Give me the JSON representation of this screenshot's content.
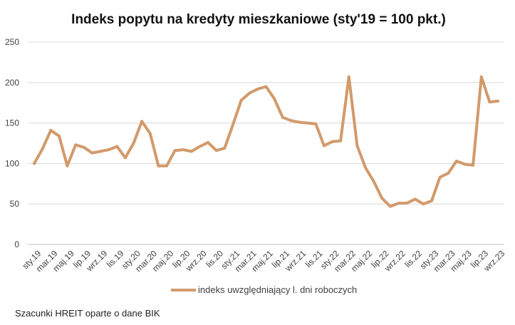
{
  "chart_data": {
    "type": "line",
    "title": "Indeks popytu na kredyty mieszkaniowe (sty'19 = 100 pkt.)",
    "xlabel": "",
    "ylabel": "",
    "ylim": [
      0,
      250
    ],
    "yticks": [
      "0",
      "50",
      "100",
      "150",
      "200",
      "250"
    ],
    "grid": true,
    "legend_position": "bottom",
    "categories": [
      "sty.19",
      "lut.19",
      "mar.19",
      "kwi.19",
      "maj.19",
      "cze.19",
      "lip.19",
      "sie.19",
      "wrz.19",
      "paź.19",
      "lis.19",
      "gru.19",
      "sty.20",
      "lut.20",
      "mar.20",
      "kwi.20",
      "maj.20",
      "cze.20",
      "lip.20",
      "sie.20",
      "wrz.20",
      "paź.20",
      "lis.20",
      "gru.20",
      "sty.21",
      "lut.21",
      "mar.21",
      "kwi.21",
      "maj.21",
      "cze.21",
      "lip.21",
      "sie.21",
      "wrz.21",
      "paź.21",
      "lis.21",
      "gru.21",
      "sty.22",
      "lut.22",
      "mar.22",
      "kwi.22",
      "maj.22",
      "cze.22",
      "lip.22",
      "sie.22",
      "wrz.22",
      "paź.22",
      "lis.22",
      "gru.22",
      "sty.23",
      "lut.23",
      "mar.23",
      "kwi.23",
      "maj.23",
      "cze.23",
      "lip.23",
      "sie.23",
      "wrz.23"
    ],
    "tick_labels": [
      "sty.19",
      "mar.19",
      "maj.19",
      "lip.19",
      "wrz.19",
      "lis.19",
      "sty.20",
      "mar.20",
      "maj.20",
      "lip.20",
      "wrz.20",
      "lis.20",
      "sty.21",
      "mar.21",
      "maj.21",
      "lip.21",
      "wrz.21",
      "lis.21",
      "sty.22",
      "mar.22",
      "maj.22",
      "lip.22",
      "wrz.22",
      "lis.22",
      "sty.23",
      "mar.23",
      "maj.23",
      "lip.23",
      "wrz.23"
    ],
    "series": [
      {
        "name": "indeks uwzględniający l. dni roboczych",
        "color": "#d29a6b",
        "values": [
          100,
          118,
          141,
          134,
          97,
          123,
          120,
          113,
          115,
          117,
          121,
          107,
          125,
          152,
          137,
          97,
          97,
          116,
          117,
          115,
          121,
          126,
          116,
          119,
          148,
          178,
          187,
          192,
          195,
          180,
          157,
          153,
          151,
          150,
          149,
          122,
          127,
          128,
          207,
          122,
          95,
          78,
          57,
          47,
          51,
          51,
          56,
          50,
          54,
          83,
          88,
          103,
          99,
          98,
          207,
          176,
          177
        ]
      }
    ]
  },
  "source_note": "Szacunki HREIT oparte o dane BIK"
}
